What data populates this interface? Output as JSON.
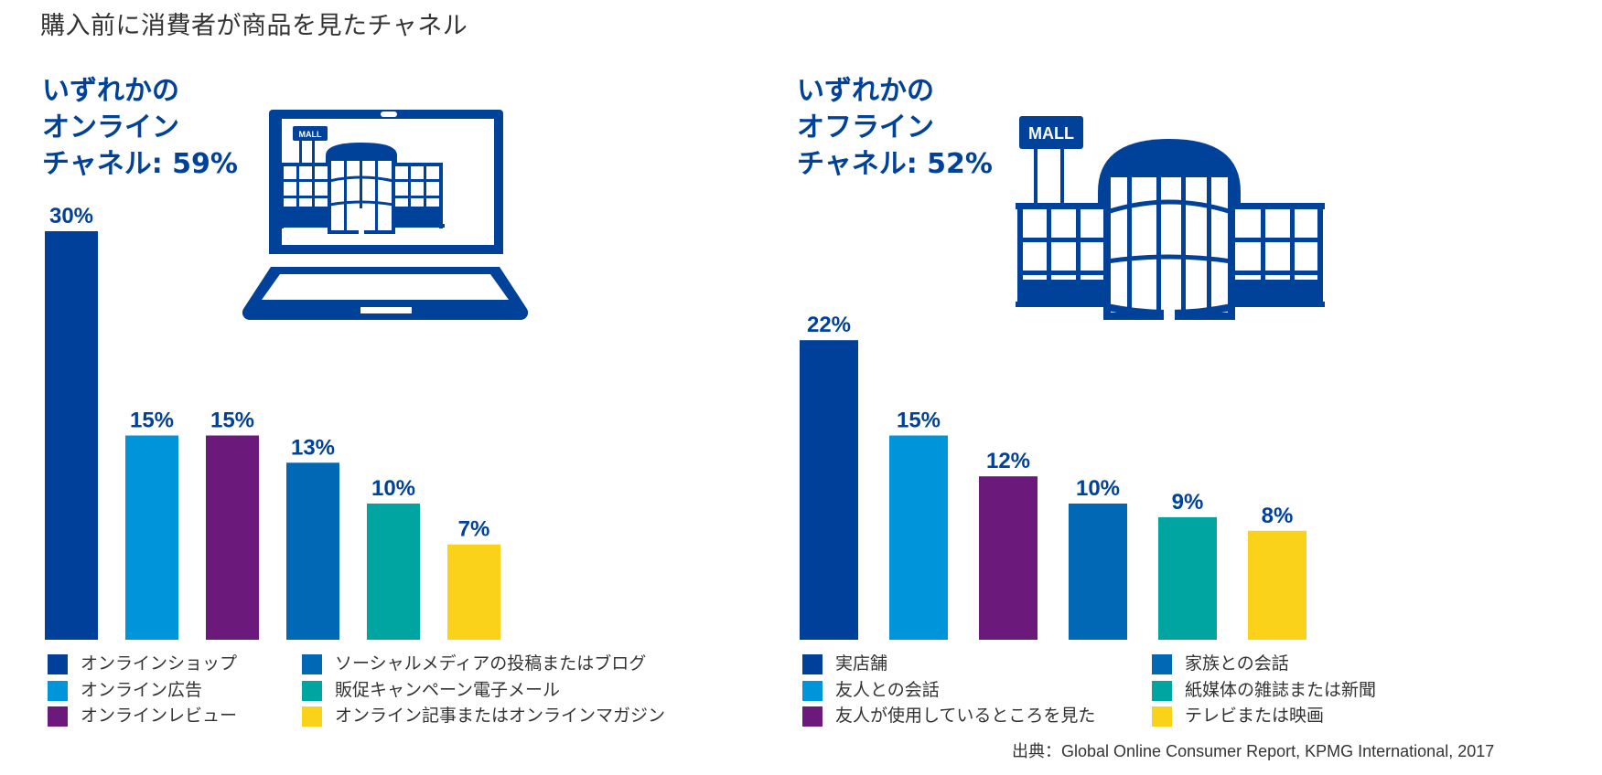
{
  "page": {
    "title": "購入前に消費者が商品を見たチャネル",
    "source": "出典：Global Online Consumer Report, KPMG International, 2017"
  },
  "colors": {
    "headline": "#00419a",
    "series": [
      "#00409a",
      "#0094da",
      "#6b1a7c",
      "#0068b5",
      "#00a5a2",
      "#fbd21a"
    ]
  },
  "icons": {
    "left": "laptop-mall-icon",
    "right": "mall-building-icon",
    "mall_sign_text": "MALL"
  },
  "chart_data": [
    {
      "type": "bar",
      "title": "いずれかのオンラインチャネル: 59%",
      "title_lines": [
        "いずれかの",
        "オンライン",
        "チャネル: 59%"
      ],
      "categories": [
        "オンラインショップ",
        "オンライン広告",
        "オンラインレビュー",
        "ソーシャルメディアの投稿またはブログ",
        "販促キャンペーン電子メール",
        "オンライン記事またはオンラインマガジン"
      ],
      "values": [
        30,
        15,
        15,
        13,
        10,
        7
      ],
      "value_labels": [
        "30%",
        "15%",
        "15%",
        "13%",
        "10%",
        "7%"
      ],
      "unit": "%",
      "xlabel": "",
      "ylabel": "",
      "ylim": [
        0,
        30
      ],
      "grid": false,
      "legend_position": "bottom",
      "legend_columns": [
        [
          "オンラインショップ",
          "オンライン広告",
          "オンラインレビュー"
        ],
        [
          "ソーシャルメディアの投稿またはブログ",
          "販促キャンペーン電子メール",
          "オンライン記事またはオンラインマガジン"
        ]
      ]
    },
    {
      "type": "bar",
      "title": "いずれかのオフラインチャネル: 52%",
      "title_lines": [
        "いずれかの",
        "オフライン",
        "チャネル: 52%"
      ],
      "categories": [
        "実店舗",
        "友人との会話",
        "友人が使用しているところを見た",
        "家族との会話",
        "紙媒体の雑誌または新聞",
        "テレビまたは映画"
      ],
      "values": [
        22,
        15,
        12,
        10,
        9,
        8
      ],
      "value_labels": [
        "22%",
        "15%",
        "12%",
        "10%",
        "9%",
        "8%"
      ],
      "unit": "%",
      "xlabel": "",
      "ylabel": "",
      "ylim": [
        0,
        30
      ],
      "grid": false,
      "legend_position": "bottom",
      "legend_columns": [
        [
          "実店舗",
          "友人との会話",
          "友人が使用しているところを見た"
        ],
        [
          "家族との会話",
          "紙媒体の雑誌または新聞",
          "テレビまたは映画"
        ]
      ]
    }
  ]
}
